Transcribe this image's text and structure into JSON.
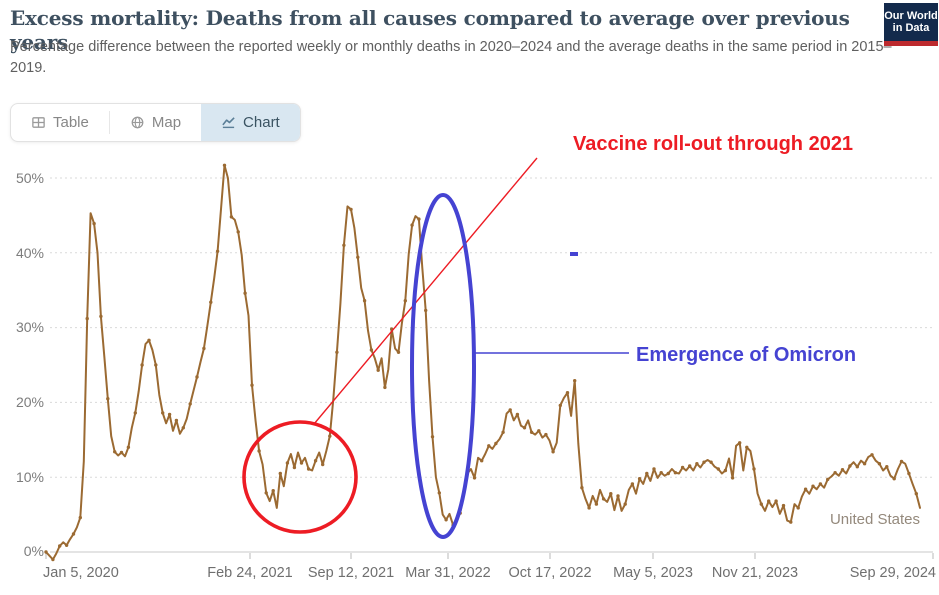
{
  "header": {
    "title": "Excess mortality: Deaths from all causes compared to average over previous years",
    "subtitle": "Percentage difference between the reported weekly or monthly deaths in 2020–2024 and the average deaths in the same period in 2015–2019.",
    "logo": {
      "line1": "Our World",
      "line2": "in Data"
    }
  },
  "tabs": [
    {
      "label": "Table",
      "icon": "table-grid-icon",
      "active": false
    },
    {
      "label": "Map",
      "icon": "globe-icon",
      "active": false
    },
    {
      "label": "Chart",
      "icon": "line-chart-icon",
      "active": true
    }
  ],
  "annotations": {
    "vaccine": {
      "text": "Vaccine roll-out through 2021",
      "color": "#ed1c24"
    },
    "omicron": {
      "text": "Emergence of Omicron",
      "color": "#4543d2"
    }
  },
  "chart_data": {
    "type": "line",
    "title": "Excess mortality: Deaths from all causes compared to average over previous years",
    "entity": "United States",
    "unit": "%",
    "grid": true,
    "line_color": "#9b6a32",
    "y_ticks": [
      "0%",
      "10%",
      "20%",
      "30%",
      "40%",
      "50%"
    ],
    "y_tick_values": [
      0,
      10,
      20,
      30,
      40,
      50
    ],
    "ylim": [
      -2,
      53
    ],
    "x_tick_labels": [
      "Jan 5, 2020",
      "Feb 24, 2021",
      "Sep 12, 2021",
      "Mar 31, 2022",
      "Oct 17, 2022",
      "May 5, 2023",
      "Nov 21, 2023",
      "Sep 29, 2024"
    ],
    "x_tick_day_offsets": [
      0,
      416,
      616,
      816,
      1016,
      1216,
      1416,
      1729
    ],
    "series": [
      {
        "name": "United States",
        "start_date": "Jan 5, 2020",
        "interval_days": 7,
        "values": [
          0.0,
          -0.5,
          -1.0,
          -0.2,
          0.8,
          1.3,
          0.9,
          1.7,
          2.4,
          3.3,
          4.6,
          12.1,
          31.2,
          45.3,
          43.9,
          40.0,
          31.5,
          26.0,
          20.5,
          15.5,
          13.4,
          12.9,
          13.3,
          12.8,
          14.0,
          16.6,
          18.6,
          21.5,
          25.0,
          27.8,
          28.3,
          27.0,
          25.0,
          21.0,
          18.6,
          17.2,
          18.4,
          16.2,
          17.6,
          15.8,
          16.6,
          17.8,
          19.8,
          21.6,
          23.4,
          25.4,
          27.2,
          30.2,
          33.4,
          36.6,
          40.2,
          46.0,
          51.7,
          50.0,
          44.8,
          44.4,
          42.8,
          39.7,
          34.6,
          31.6,
          22.3,
          17.5,
          13.5,
          11.7,
          7.9,
          6.8,
          8.2,
          5.9,
          10.5,
          8.8,
          11.9,
          13.1,
          11.3,
          13.3,
          11.9,
          12.6,
          11.1,
          10.9,
          12.2,
          13.3,
          11.7,
          13.5,
          15.5,
          20.4,
          26.7,
          33.2,
          41.0,
          46.2,
          45.8,
          43.3,
          39.4,
          35.3,
          33.6,
          29.6,
          27.0,
          25.9,
          24.3,
          25.9,
          22.0,
          24.4,
          29.8,
          27.2,
          26.7,
          30.6,
          33.6,
          39.8,
          43.7,
          44.9,
          44.5,
          38.0,
          32.3,
          22.9,
          15.4,
          10.0,
          7.9,
          5.0,
          4.3,
          5.1,
          3.6,
          4.4,
          5.2,
          7.8,
          10.5,
          11.1,
          9.9,
          12.6,
          12.2,
          13.1,
          14.2,
          13.8,
          14.5,
          15.1,
          16.0,
          18.5,
          19.0,
          17.6,
          18.4,
          16.9,
          16.6,
          17.6,
          16.0,
          15.7,
          16.2,
          15.3,
          15.7,
          14.9,
          13.4,
          14.6,
          19.6,
          20.6,
          21.3,
          18.2,
          22.9,
          14.5,
          8.6,
          7.1,
          5.9,
          7.5,
          6.4,
          8.3,
          7.1,
          6.7,
          7.8,
          5.6,
          7.5,
          5.5,
          6.4,
          8.3,
          9.1,
          7.8,
          9.8,
          9.1,
          10.5,
          9.5,
          11.1,
          9.9,
          10.6,
          10.2,
          10.5,
          11.1,
          10.6,
          10.5,
          11.3,
          10.9,
          11.5,
          10.9,
          11.8,
          11.3,
          12.0,
          12.3,
          12.0,
          11.4,
          11.1,
          10.5,
          10.9,
          12.5,
          9.9,
          14.2,
          14.6,
          10.9,
          14.0,
          13.5,
          11.1,
          7.8,
          6.4,
          5.5,
          6.8,
          6.0,
          6.8,
          5.1,
          6.2,
          4.2,
          4.0,
          6.4,
          5.9,
          7.4,
          8.4,
          7.8,
          8.8,
          8.4,
          9.1,
          8.6,
          9.7,
          10.1,
          10.6,
          10.2,
          11.0,
          10.5,
          11.5,
          12.0,
          11.4,
          12.2,
          11.8,
          12.7,
          13.0,
          12.2,
          11.8,
          10.9,
          11.4,
          10.2,
          9.8,
          11.1,
          12.1,
          11.8,
          10.5,
          9.1,
          7.8,
          5.9
        ]
      }
    ]
  },
  "colors": {
    "line": "#9b6a32",
    "annotation_red": "#ed1c24",
    "annotation_blue": "#4543d2",
    "logo_navy": "#132a4c",
    "logo_red": "#bd2a2e",
    "active_tab_bg": "#d9e7f1"
  }
}
